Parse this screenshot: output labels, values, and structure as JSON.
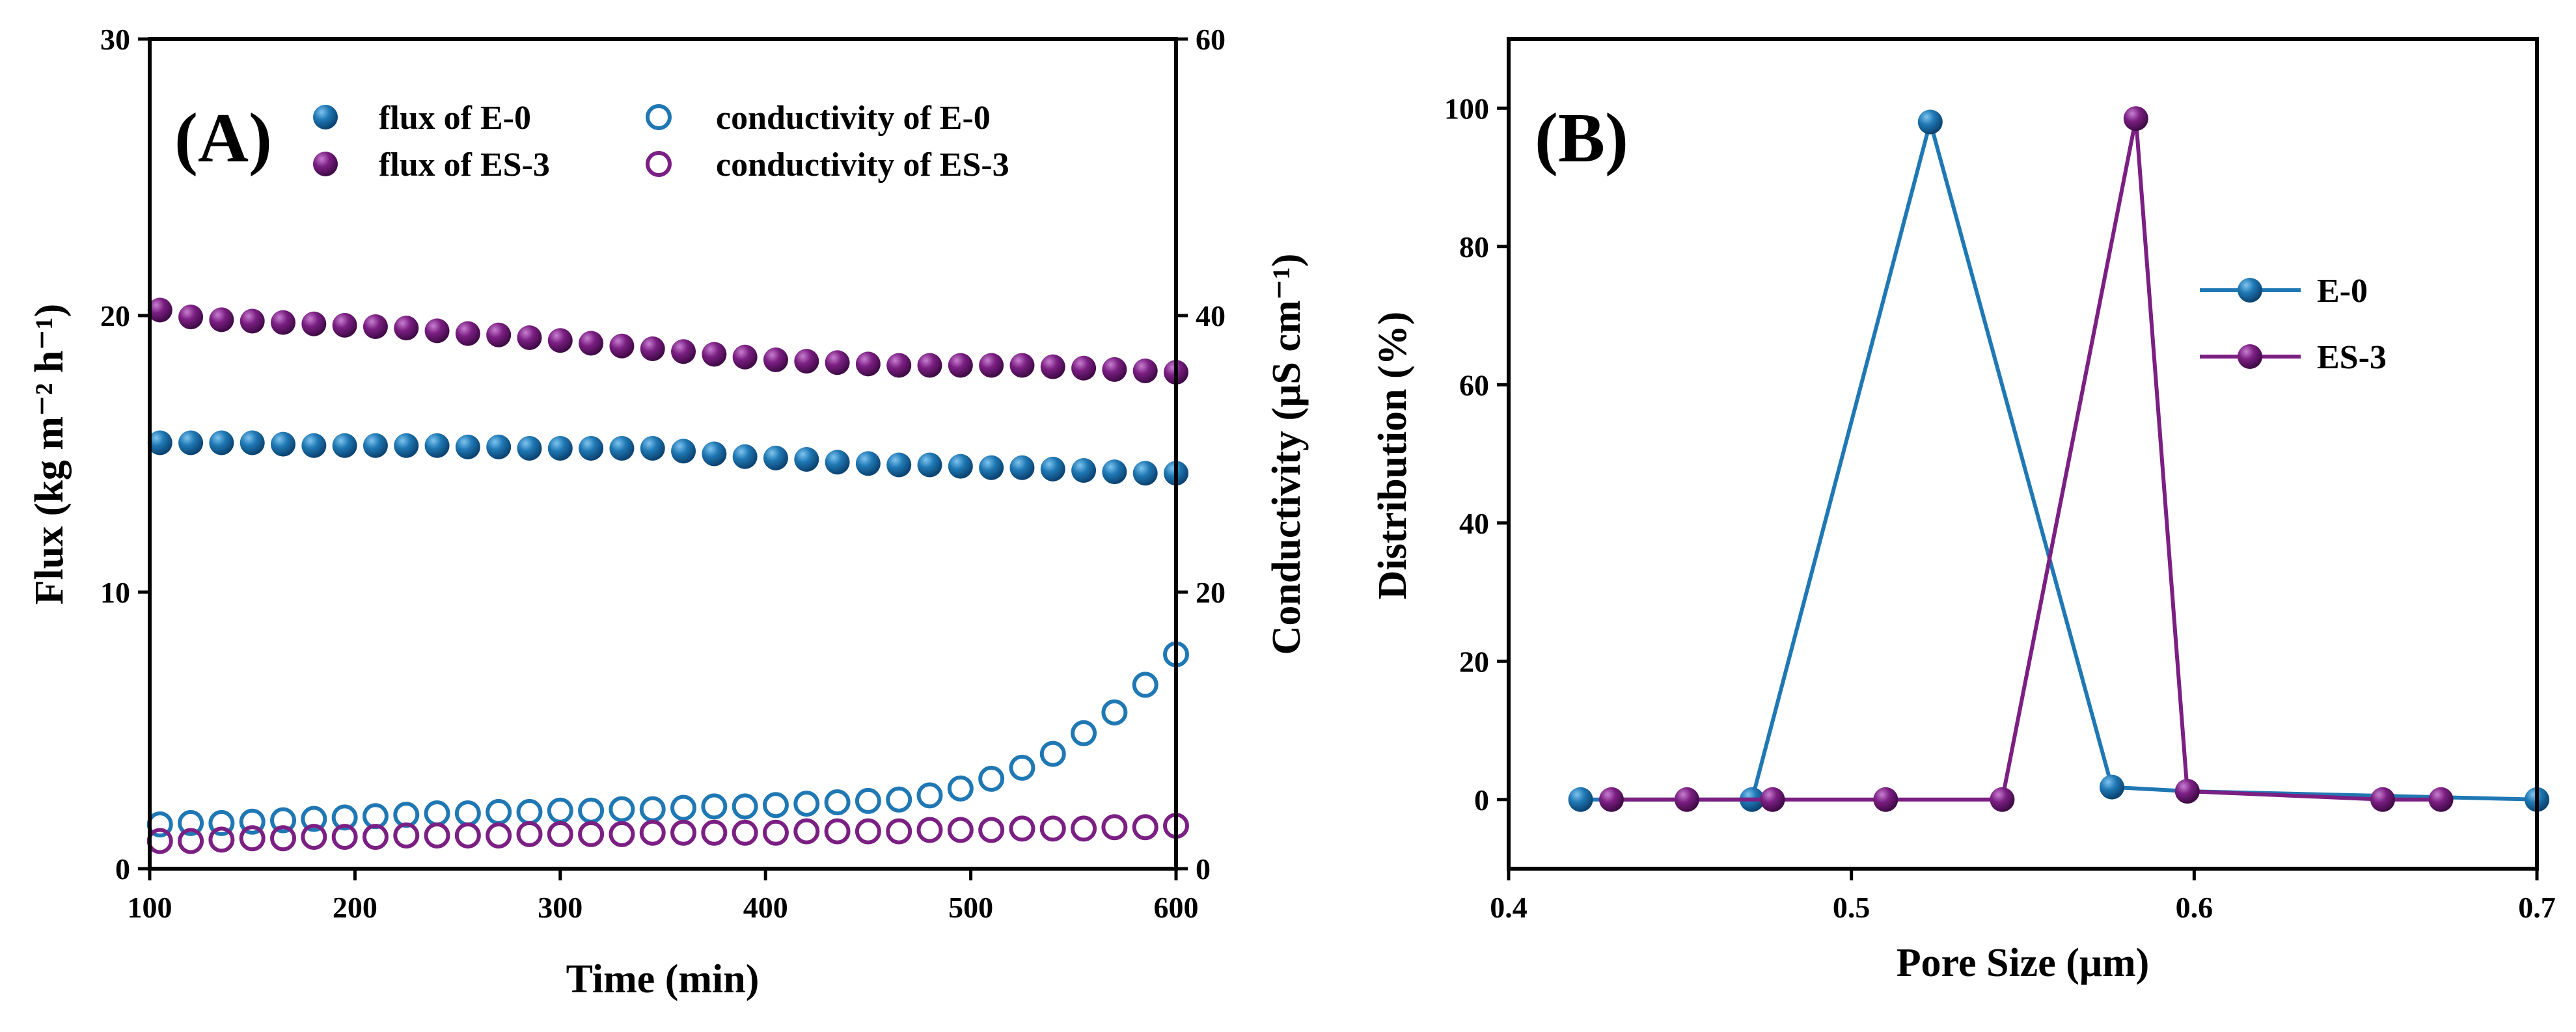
{
  "colors": {
    "blue": "#1f78b4",
    "purple": "#7b1f83",
    "axis": "#000000"
  },
  "chart_data": [
    {
      "panel_label": "(A)",
      "type": "scatter",
      "xlabel": "Time (min)",
      "ylabel_left": "Flux (kg m⁻² h⁻¹)",
      "ylabel_right": "Conductivity (μS cm⁻¹)",
      "xlim": [
        100,
        600
      ],
      "ylim_left": [
        0,
        30
      ],
      "ylim_right": [
        0,
        60
      ],
      "xticks": [
        "100",
        "200",
        "300",
        "400",
        "500",
        "600"
      ],
      "yticks_left": [
        "0",
        "10",
        "20",
        "30"
      ],
      "yticks_right": [
        "0",
        "20",
        "40",
        "60"
      ],
      "x": [
        105,
        120,
        135,
        150,
        165,
        180,
        195,
        210,
        225,
        240,
        255,
        270,
        285,
        300,
        315,
        330,
        345,
        360,
        375,
        390,
        405,
        420,
        435,
        450,
        465,
        480,
        495,
        510,
        525,
        540,
        555,
        570,
        585,
        600
      ],
      "series": [
        {
          "name": "flux of E-0",
          "axis": "left",
          "marker": "filled",
          "color": "blue",
          "values": [
            15.4,
            15.4,
            15.4,
            15.4,
            15.35,
            15.3,
            15.3,
            15.3,
            15.3,
            15.3,
            15.25,
            15.25,
            15.2,
            15.2,
            15.2,
            15.2,
            15.2,
            15.1,
            15.0,
            14.9,
            14.85,
            14.8,
            14.7,
            14.65,
            14.6,
            14.6,
            14.55,
            14.5,
            14.5,
            14.45,
            14.4,
            14.35,
            14.3,
            14.3
          ]
        },
        {
          "name": "flux of ES-3",
          "axis": "left",
          "marker": "filled",
          "color": "purple",
          "values": [
            20.2,
            19.95,
            19.85,
            19.8,
            19.75,
            19.7,
            19.65,
            19.6,
            19.55,
            19.45,
            19.35,
            19.3,
            19.2,
            19.1,
            19.0,
            18.9,
            18.8,
            18.7,
            18.6,
            18.5,
            18.4,
            18.35,
            18.3,
            18.25,
            18.2,
            18.2,
            18.2,
            18.2,
            18.2,
            18.15,
            18.1,
            18.05,
            18.0,
            17.95
          ]
        },
        {
          "name": "conductivity of E-0",
          "axis": "right",
          "marker": "hollow",
          "color": "blue",
          "values": [
            3.2,
            3.3,
            3.3,
            3.4,
            3.5,
            3.6,
            3.7,
            3.8,
            3.9,
            4.0,
            4.0,
            4.1,
            4.1,
            4.2,
            4.2,
            4.3,
            4.3,
            4.4,
            4.5,
            4.5,
            4.6,
            4.7,
            4.8,
            4.9,
            5.0,
            5.3,
            5.8,
            6.5,
            7.3,
            8.3,
            9.8,
            11.3,
            13.3,
            15.5
          ]
        },
        {
          "name": "conductivity of ES-3",
          "axis": "right",
          "marker": "hollow",
          "color": "purple",
          "values": [
            2.0,
            2.0,
            2.1,
            2.2,
            2.2,
            2.3,
            2.3,
            2.3,
            2.4,
            2.4,
            2.4,
            2.4,
            2.5,
            2.5,
            2.5,
            2.5,
            2.6,
            2.6,
            2.6,
            2.6,
            2.6,
            2.7,
            2.7,
            2.7,
            2.7,
            2.8,
            2.8,
            2.8,
            2.9,
            2.9,
            2.9,
            3.0,
            3.0,
            3.1
          ]
        }
      ],
      "legend": [
        {
          "label": "flux of E-0",
          "marker": "filled",
          "color": "blue"
        },
        {
          "label": "flux of ES-3",
          "marker": "filled",
          "color": "purple"
        },
        {
          "label": "conductivity of E-0",
          "marker": "hollow",
          "color": "blue"
        },
        {
          "label": "conductivity of ES-3",
          "marker": "hollow",
          "color": "purple"
        }
      ],
      "legend_position": "top"
    },
    {
      "panel_label": "(B)",
      "type": "line",
      "xlabel": "Pore Size (μm)",
      "ylabel": "Distribution (%)",
      "xlim": [
        0.4,
        0.7
      ],
      "ylim": [
        -10,
        110
      ],
      "xticks": [
        "0.4",
        "0.5",
        "0.6",
        "0.7"
      ],
      "yticks": [
        "0",
        "20",
        "40",
        "60",
        "80",
        "100"
      ],
      "series": [
        {
          "name": "E-0",
          "color": "blue",
          "x": [
            0.421,
            0.471,
            0.523,
            0.576,
            0.598,
            0.7
          ],
          "y": [
            0,
            0,
            98,
            1.8,
            1.2,
            0
          ]
        },
        {
          "name": "ES-3",
          "color": "purple",
          "x": [
            0.43,
            0.452,
            0.477,
            0.51,
            0.544,
            0.583,
            0.598,
            0.655,
            0.672
          ],
          "y": [
            0,
            0,
            0,
            0,
            0,
            98.5,
            1.2,
            0,
            0
          ]
        }
      ],
      "legend": [
        {
          "label": "E-0",
          "color": "blue"
        },
        {
          "label": "ES-3",
          "color": "purple"
        }
      ],
      "legend_position": "right"
    }
  ]
}
